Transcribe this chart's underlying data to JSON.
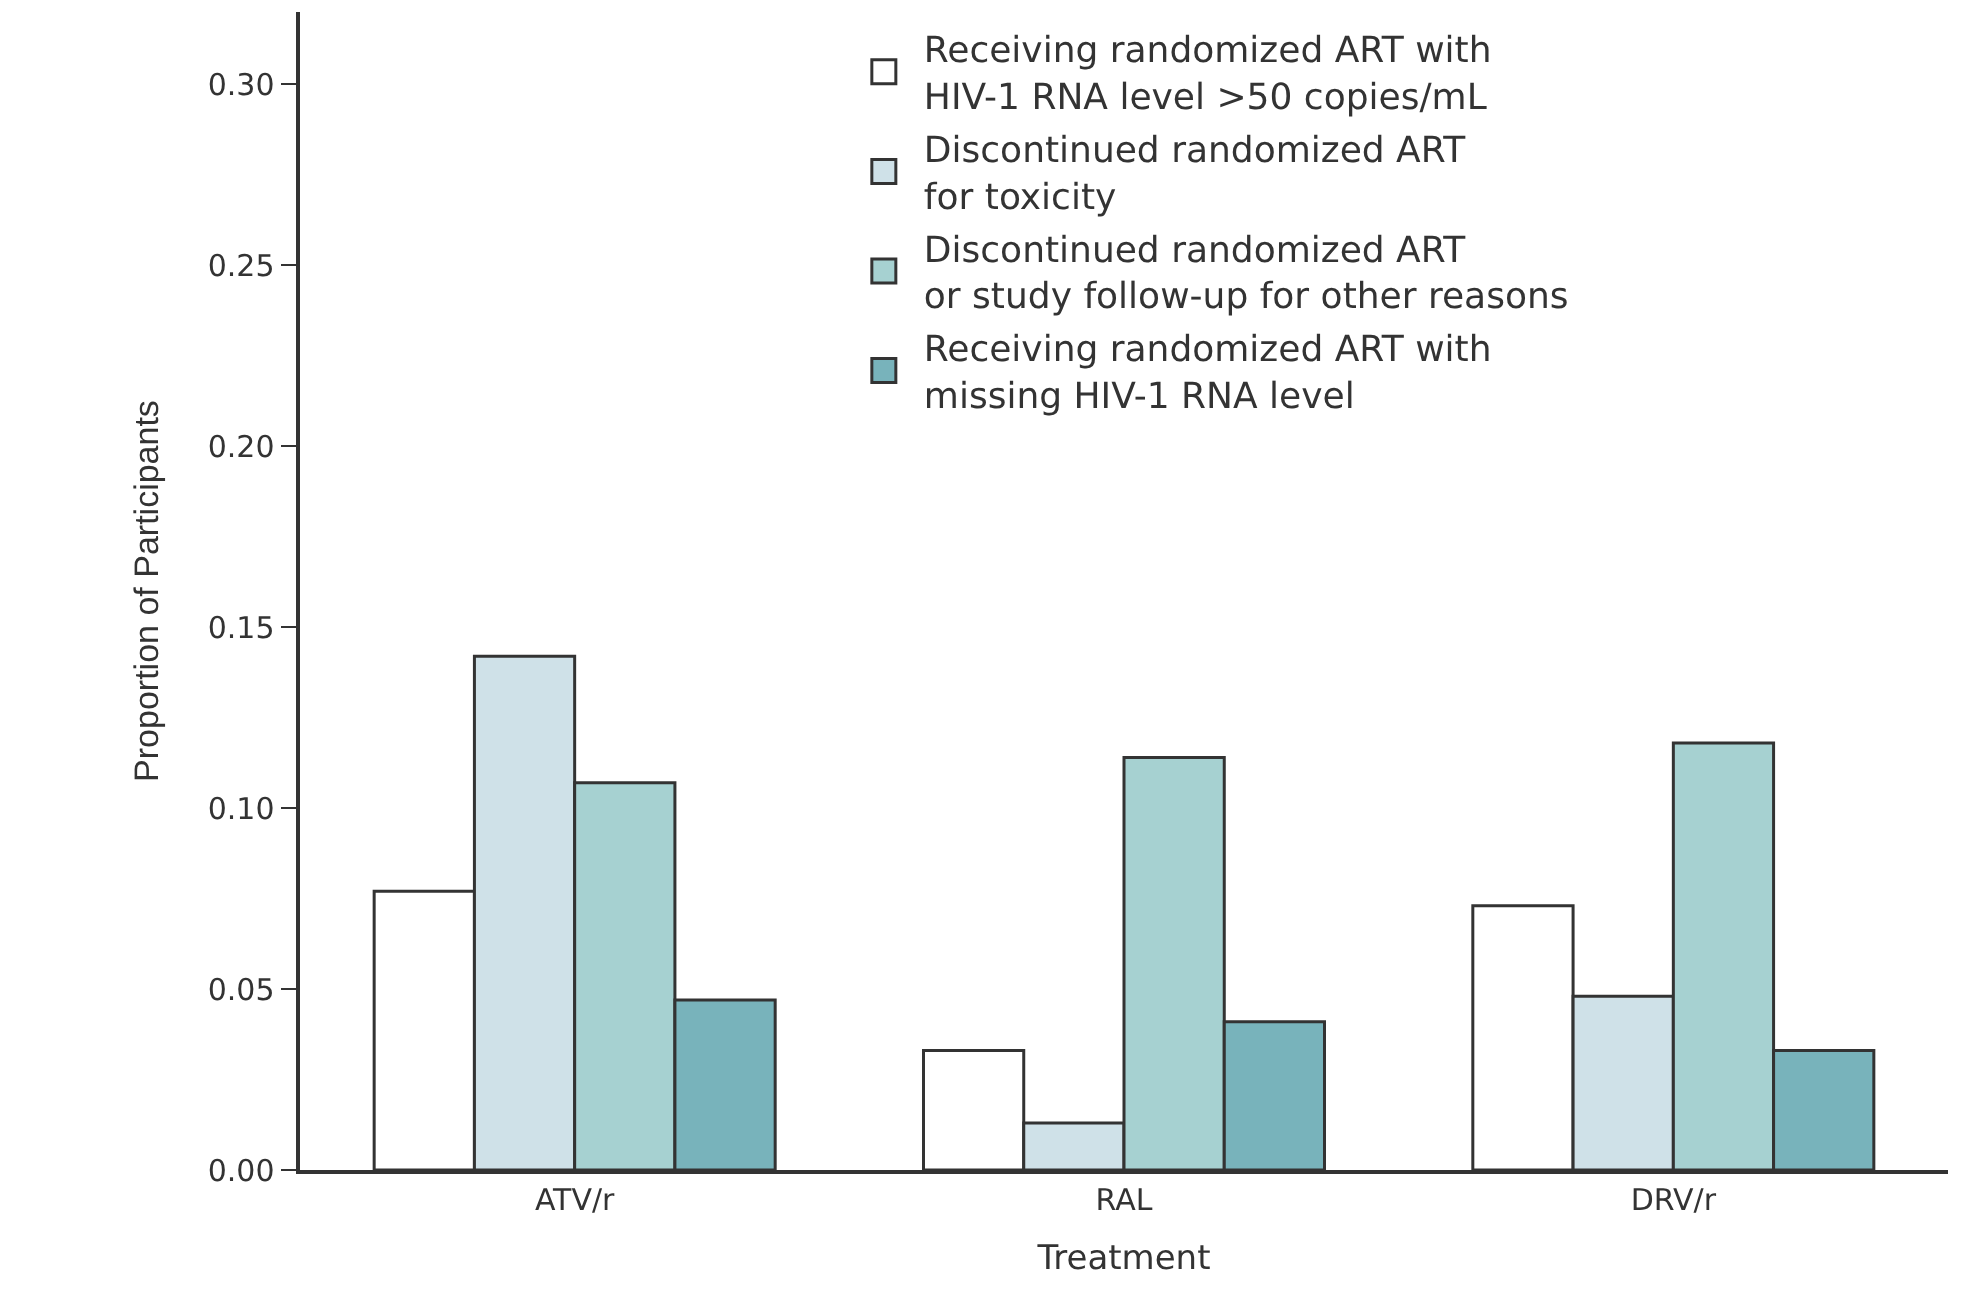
{
  "chart_data": {
    "type": "bar",
    "xlabel": "Treatment",
    "ylabel": "Proportion of Participants",
    "categories": [
      "ATV/r",
      "RAL",
      "DRV/r"
    ],
    "series": [
      {
        "name": "Receiving randomized ART with\nHIV-1 RNA level >50 copies/mL",
        "color": "#ffffff",
        "values": [
          0.077,
          0.033,
          0.073
        ]
      },
      {
        "name": "Discontinued randomized ART\nfor toxicity",
        "color": "#cfe1e8",
        "values": [
          0.142,
          0.013,
          0.048
        ]
      },
      {
        "name": "Discontinued randomized ART\nor study follow-up for other reasons",
        "color": "#a6d1d1",
        "values": [
          0.107,
          0.114,
          0.118
        ]
      },
      {
        "name": "Receiving randomized ART with\nmissing HIV-1 RNA level",
        "color": "#78b3bb",
        "values": [
          0.047,
          0.041,
          0.033
        ]
      }
    ],
    "ylim": [
      0,
      0.32
    ],
    "yticks": [
      {
        "value": 0,
        "label": "0.00"
      },
      {
        "value": 0.05,
        "label": "0.05"
      },
      {
        "value": 0.1,
        "label": "0.10"
      },
      {
        "value": 0.15,
        "label": "0.15"
      },
      {
        "value": 0.2,
        "label": "0.20"
      },
      {
        "value": 0.25,
        "label": "0.25"
      },
      {
        "value": 0.3,
        "label": "0.30"
      }
    ],
    "legend": "top right"
  }
}
